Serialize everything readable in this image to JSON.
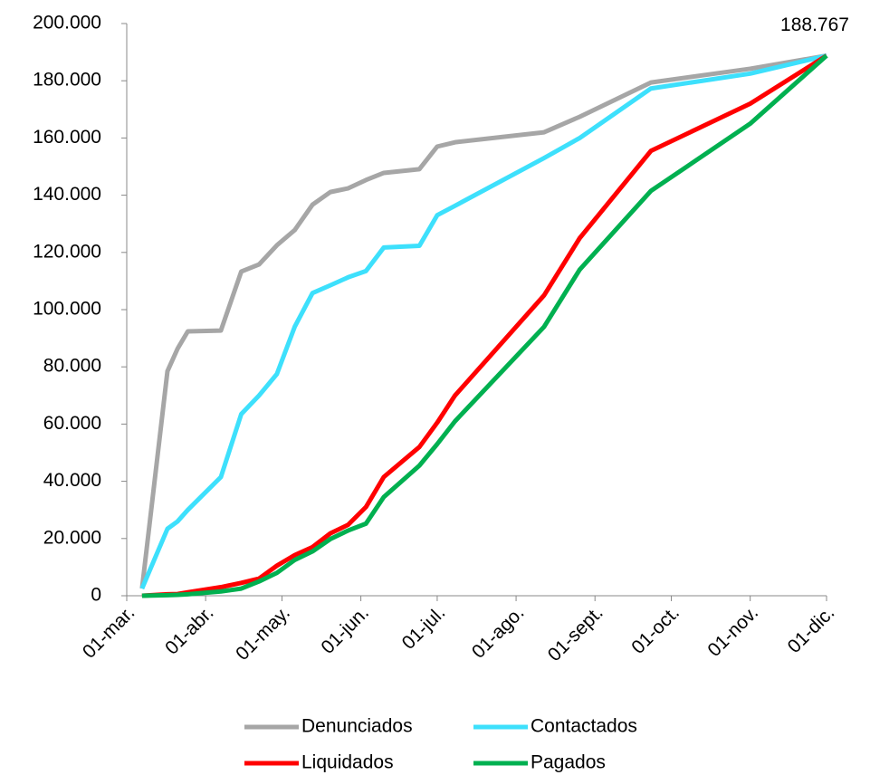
{
  "chart_data": {
    "type": "line",
    "x": [
      "03-07",
      "03-17",
      "03-21",
      "03-25",
      "04-07",
      "04-15",
      "04-22",
      "04-29",
      "05-06",
      "05-13",
      "05-20",
      "05-27",
      "06-03",
      "06-10",
      "06-24",
      "07-01",
      "07-08",
      "08-12",
      "08-26",
      "09-23",
      "11-01",
      "12-01"
    ],
    "series": [
      {
        "name": "Denunciados",
        "color": "#a6a6a6",
        "values": [
          2500,
          78500,
          86400,
          92400,
          92700,
          113300,
          115800,
          122500,
          127800,
          136700,
          141100,
          142400,
          145300,
          147800,
          149100,
          157000,
          158500,
          162000,
          167400,
          179400,
          184200,
          188767
        ]
      },
      {
        "name": "Contactados",
        "color": "#3de0fc",
        "values": [
          2500,
          23400,
          26000,
          30000,
          41500,
          63500,
          70000,
          77500,
          94000,
          105800,
          108500,
          111300,
          113500,
          121700,
          122300,
          133000,
          136300,
          153000,
          160000,
          177300,
          182500,
          188767
        ]
      },
      {
        "name": "Liquidados",
        "color": "#ff0000",
        "values": [
          0,
          500,
          600,
          1200,
          3000,
          4500,
          6000,
          10500,
          14200,
          17000,
          21800,
          24800,
          31000,
          41500,
          52000,
          60500,
          70000,
          105000,
          125000,
          155500,
          172000,
          188767
        ]
      },
      {
        "name": "Pagados",
        "color": "#00b050",
        "values": [
          0,
          200,
          300,
          500,
          1500,
          2500,
          5000,
          8000,
          12500,
          15500,
          19800,
          22800,
          25200,
          34500,
          45500,
          53000,
          61000,
          94000,
          114000,
          141500,
          165000,
          188767
        ]
      }
    ],
    "xlim": [
      "03-01",
      "12-01"
    ],
    "xticks": [
      {
        "value": "03-01",
        "label": "01-mar."
      },
      {
        "value": "04-01",
        "label": "01-abr."
      },
      {
        "value": "05-01",
        "label": "01-may."
      },
      {
        "value": "06-01",
        "label": "01-jun."
      },
      {
        "value": "07-01",
        "label": "01-jul."
      },
      {
        "value": "08-01",
        "label": "01-ago."
      },
      {
        "value": "09-01",
        "label": "01-sept."
      },
      {
        "value": "10-01",
        "label": "01-oct."
      },
      {
        "value": "11-01",
        "label": "01-nov."
      },
      {
        "value": "12-01",
        "label": "01-dic."
      }
    ],
    "ylim": [
      0,
      200000
    ],
    "yticks": [
      0,
      {
        "value": 20000,
        "label": "20.000"
      },
      {
        "value": 40000,
        "label": "40.000"
      },
      {
        "value": 60000,
        "label": "60.000"
      },
      {
        "value": 80000,
        "label": "80.000"
      },
      {
        "value": 100000,
        "label": "100.000"
      },
      {
        "value": 120000,
        "label": "120.000"
      },
      {
        "value": 140000,
        "label": "140.000"
      },
      {
        "value": 160000,
        "label": "160.000"
      },
      {
        "value": 180000,
        "label": "180.000"
      },
      {
        "value": 200000,
        "label": "200.000"
      }
    ],
    "annotations": [
      {
        "text": "188.767",
        "x": "12-01",
        "y": 188767
      }
    ],
    "legend": "bottom",
    "grid": false
  }
}
